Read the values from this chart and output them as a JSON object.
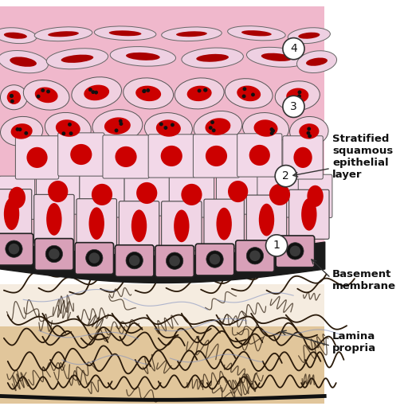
{
  "background_color": "#ffffff",
  "figure_size": [
    5.12,
    5.15
  ],
  "dpi": 100,
  "labels": {
    "stratified": "Stratified\nsquamous\nepithelial\nlayer",
    "basement": "Basement\nmembrane",
    "lamina": "Lamina\npropria"
  },
  "colors": {
    "epithelial_bg": "#f0b8cc",
    "epithelial_light": "#f8d8e4",
    "cell_fill": "#fce8f0",
    "cell_outline": "#555555",
    "nucleus_red": "#cc0000",
    "basement_dark": "#1a1a1a",
    "basement_pink": "#e8a0b0",
    "lamina_bg_top": "#f5e8d8",
    "lamina_bg_bot": "#e8c8a0",
    "fibers_dark": "#2a1a0a",
    "fibers_blue": "#8090c0",
    "circle_fill": "#ffffff",
    "circle_outline": "#333333",
    "label_color": "#111111",
    "arrow_color": "#333333"
  }
}
